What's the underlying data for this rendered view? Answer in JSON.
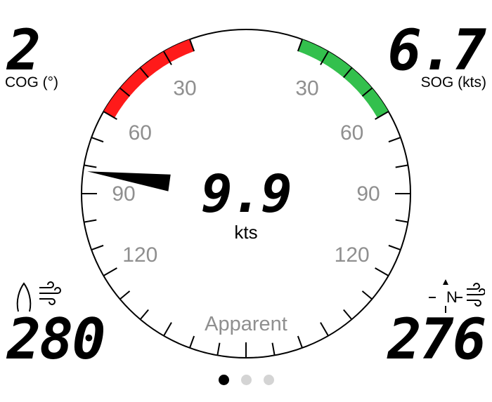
{
  "top_left": {
    "value": "2",
    "label": "COG (°)"
  },
  "top_right": {
    "value": "6.7",
    "label": "SOG (kts)"
  },
  "bottom_left": {
    "value": "280",
    "icon": "boat-wind-icon"
  },
  "bottom_right": {
    "value": "276",
    "icon": "north-wind-icon",
    "north_letter": "N"
  },
  "center": {
    "value": "9.9",
    "unit": "kts",
    "mode": "Apparent"
  },
  "gauge": {
    "angle_labels": [
      "30",
      "60",
      "90",
      "120"
    ],
    "port_color": "#ff1a1a",
    "starboard_color": "#33c04d",
    "needle_angle_deg": -82
  },
  "pages": {
    "count": 3,
    "active": 0
  }
}
